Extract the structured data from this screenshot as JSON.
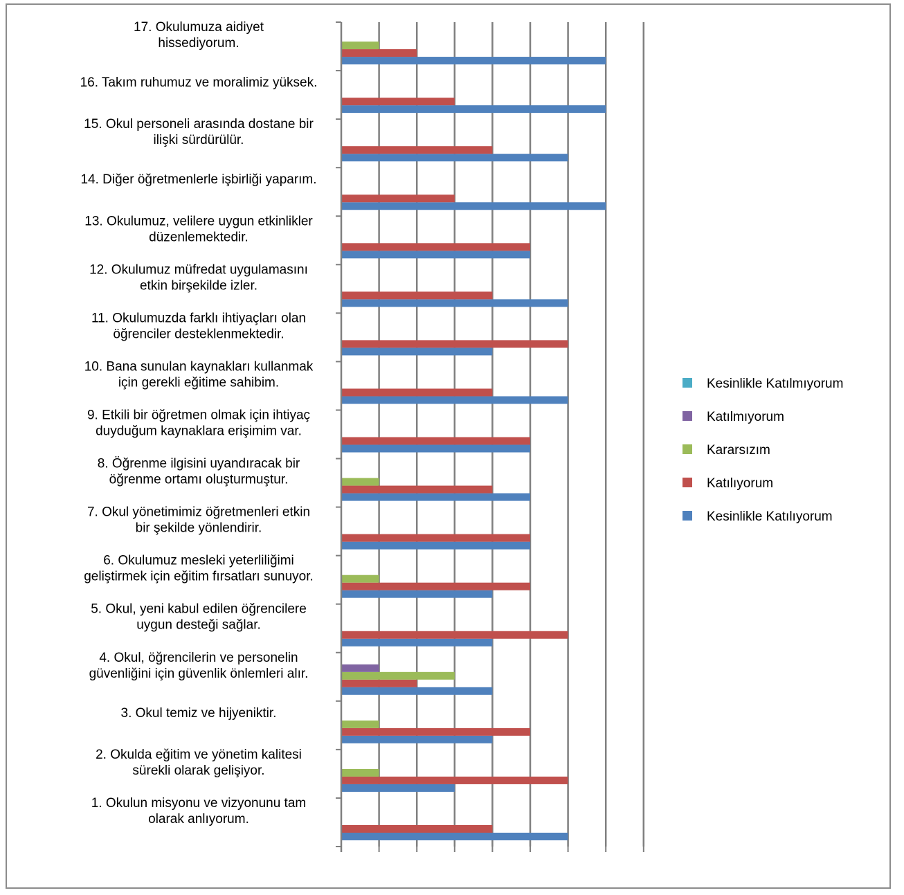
{
  "chart_data": {
    "type": "bar",
    "orientation": "horizontal",
    "title": "",
    "xlabel": "",
    "ylabel": "",
    "xlim": [
      0,
      8
    ],
    "grid": true,
    "legend_position": "right",
    "categories": [
      [
        "1. Okulun misyonu ve vizyonunu tam",
        "olarak anlıyorum."
      ],
      [
        "2. Okulda eğitim ve yönetim kalitesi",
        "sürekli olarak gelişiyor."
      ],
      [
        "3. Okul temiz ve hijyeniktir."
      ],
      [
        "4. Okul, öğrencilerin ve personelin",
        "güvenliğini için güvenlik önlemleri alır."
      ],
      [
        "5. Okul, yeni kabul edilen öğrencilere",
        "uygun desteği sağlar."
      ],
      [
        "6. Okulumuz mesleki yeterliliğimi",
        "geliştirmek için eğitim fırsatları sunuyor."
      ],
      [
        "7. Okul yönetimimiz öğretmenleri etkin",
        "bir şekilde yönlendirir."
      ],
      [
        "8. Öğrenme ilgisini uyandıracak bir",
        "öğrenme ortamı oluşturmuştur."
      ],
      [
        "9. Etkili bir öğretmen olmak için ihtiyaç",
        "duyduğum kaynaklara erişimim var."
      ],
      [
        "10. Bana sunulan kaynakları kullanmak",
        "için gerekli eğitime sahibim."
      ],
      [
        "11. Okulumuzda farklı ihtiyaçları olan",
        "öğrenciler desteklenmektedir."
      ],
      [
        "12. Okulumuz müfredat uygulamasını",
        "etkin birşekilde izler."
      ],
      [
        "13. Okulumuz, velilere uygun etkinlikler",
        "düzenlemektedir."
      ],
      [
        "14. Diğer öğretmenlerle işbirliği yaparım."
      ],
      [
        "15. Okul personeli arasında dostane bir",
        "ilişki sürdürülür."
      ],
      [
        "16. Takım ruhumuz ve moralimiz yüksek."
      ],
      [
        "17. Okulumuza aidiyet",
        "hissediyorum."
      ]
    ],
    "series": [
      {
        "name": "Kesinlikle Katılıyorum",
        "color": "#4f81bd",
        "values": [
          6,
          3,
          4,
          4,
          4,
          4,
          5,
          5,
          5,
          6,
          4,
          6,
          5,
          7,
          6,
          7,
          7
        ]
      },
      {
        "name": "Katılıyorum",
        "color": "#c0504d",
        "values": [
          4,
          6,
          5,
          2,
          6,
          5,
          5,
          4,
          5,
          4,
          6,
          4,
          5,
          3,
          4,
          3,
          2
        ]
      },
      {
        "name": "Kararsızım",
        "color": "#9bbb59",
        "values": [
          0,
          1,
          1,
          3,
          0,
          1,
          0,
          1,
          0,
          0,
          0,
          0,
          0,
          0,
          0,
          0,
          1
        ]
      },
      {
        "name": "Katılmıyorum",
        "color": "#8064a2",
        "values": [
          0,
          0,
          0,
          1,
          0,
          0,
          0,
          0,
          0,
          0,
          0,
          0,
          0,
          0,
          0,
          0,
          0
        ]
      },
      {
        "name": "Kesinlikle Katılmıyorum",
        "color": "#4bacc6",
        "values": [
          0,
          0,
          0,
          0,
          0,
          0,
          0,
          0,
          0,
          0,
          0,
          0,
          0,
          0,
          0,
          0,
          0
        ]
      }
    ],
    "legend_order": [
      4,
      3,
      2,
      1,
      0
    ]
  }
}
